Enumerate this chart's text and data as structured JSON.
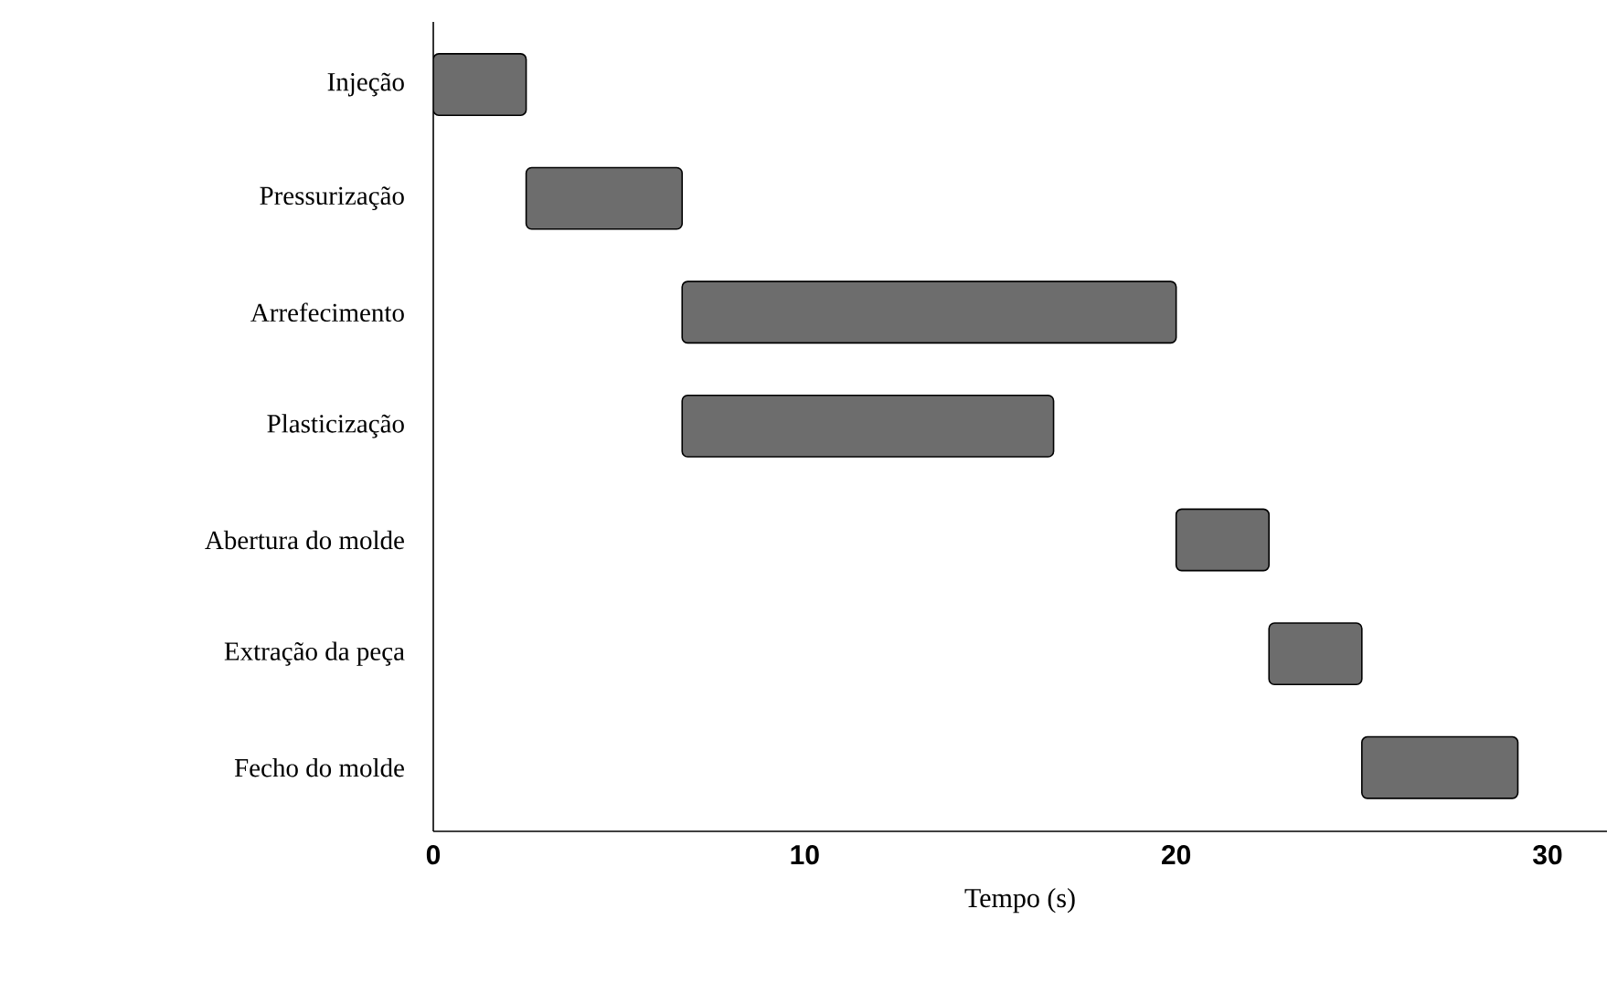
{
  "chart_data": {
    "type": "bar",
    "orientation": "horizontal",
    "xlabel": "Tempo (s)",
    "categories": [
      "Injeção",
      "Pressurização",
      "Arrefecimento",
      "Plasticização",
      "Abertura do molde",
      "Extração da peça",
      "Fecho do molde"
    ],
    "base": [
      0,
      2.5,
      6.7,
      6.7,
      20,
      22.5,
      25
    ],
    "values": [
      2.5,
      4.2,
      13.3,
      10,
      2.5,
      2.5,
      4.2
    ],
    "color": "#6d6d6d",
    "xlim": [
      0,
      31.6
    ],
    "xticks": [
      0,
      10,
      20,
      30
    ],
    "grid": false
  }
}
